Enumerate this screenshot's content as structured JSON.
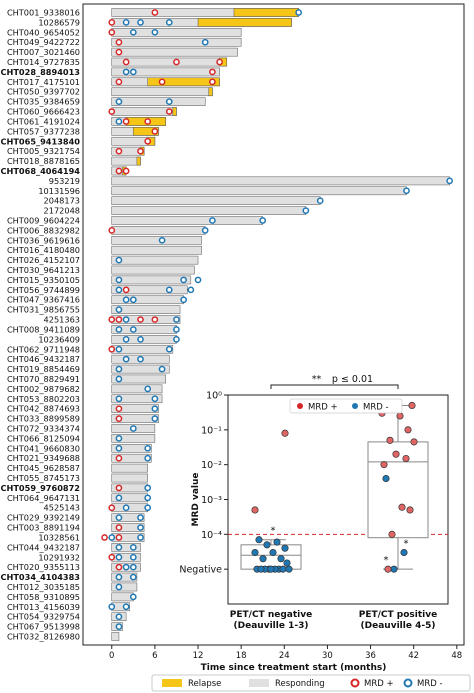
{
  "chart_data": [
    {
      "type": "bar",
      "orientation": "horizontal",
      "title": "",
      "xlabel": "Time since treatment start (months)",
      "ylabel": "",
      "xlim": [
        -4,
        49
      ],
      "xticks": [
        0,
        6,
        12,
        18,
        24,
        30,
        36,
        42,
        48
      ],
      "xtick_labels": [
        "0",
        "6",
        "12",
        "18",
        "24",
        "30",
        "36",
        "42",
        "48"
      ],
      "legend": {
        "placement": "bottom",
        "relapse": "Relapse",
        "responding": "Responding",
        "mrd_pos": "MRD +",
        "mrd_neg": "MRD -"
      },
      "colors": {
        "relapse": "#f5c518",
        "responding": "#e0e0e0",
        "mrd_pos": "#d62728",
        "mrd_neg": "#1f77b4"
      },
      "patients": [
        {
          "id": "CHT001_9338016",
          "bold": false,
          "total": 26,
          "relapse": [
            17,
            26
          ],
          "pos": [
            6
          ],
          "neg": [
            26
          ]
        },
        {
          "id": "10286579",
          "bold": false,
          "total": 25,
          "relapse": [
            12,
            25
          ],
          "pos": [
            0
          ],
          "neg": [
            2,
            4,
            8
          ]
        },
        {
          "id": "CHT040_9654052",
          "bold": false,
          "total": 18,
          "relapse": [],
          "pos": [
            0
          ],
          "neg": [
            3,
            6
          ]
        },
        {
          "id": "CHT049_9422722",
          "bold": false,
          "total": 18,
          "relapse": [],
          "pos": [
            1
          ],
          "neg": [
            13
          ]
        },
        {
          "id": "CHT007_3021460",
          "bold": false,
          "total": 17.5,
          "relapse": [],
          "pos": [
            1
          ],
          "neg": []
        },
        {
          "id": "CHT014_9727835",
          "bold": false,
          "total": 16,
          "relapse": [
            15,
            16
          ],
          "pos": [
            2,
            9,
            15
          ],
          "neg": []
        },
        {
          "id": "CHT028_8894013",
          "bold": true,
          "total": 15,
          "relapse": [],
          "pos": [
            14
          ],
          "neg": [
            2,
            3
          ]
        },
        {
          "id": "CHT017_4175101",
          "bold": false,
          "total": 15,
          "relapse": [
            5,
            15
          ],
          "pos": [
            1,
            7,
            14
          ],
          "neg": []
        },
        {
          "id": "CHT050_9397702",
          "bold": false,
          "total": 14,
          "relapse": [
            13.5,
            14
          ],
          "pos": [],
          "neg": []
        },
        {
          "id": "CHT035_9384659",
          "bold": false,
          "total": 13,
          "relapse": [],
          "pos": [],
          "neg": [
            1,
            8
          ]
        },
        {
          "id": "CHT060_9666423",
          "bold": false,
          "total": 9,
          "relapse": [
            8.5,
            9
          ],
          "pos": [
            0,
            8
          ],
          "neg": []
        },
        {
          "id": "CHT061_4191024",
          "bold": false,
          "total": 7.5,
          "relapse": [
            2,
            7.5
          ],
          "pos": [
            2,
            5
          ],
          "neg": [
            1
          ]
        },
        {
          "id": "CHT057_9377238",
          "bold": false,
          "total": 6.5,
          "relapse": [
            3,
            6.5
          ],
          "pos": [
            6
          ],
          "neg": []
        },
        {
          "id": "CHT065_9413840",
          "bold": true,
          "total": 6,
          "relapse": [
            5,
            6
          ],
          "pos": [
            5
          ],
          "neg": []
        },
        {
          "id": "CHT005_9321754",
          "bold": false,
          "total": 4.5,
          "relapse": [
            4,
            4.5
          ],
          "pos": [
            1,
            4
          ],
          "neg": []
        },
        {
          "id": "CHT018_8878165",
          "bold": false,
          "total": 4,
          "relapse": [
            3.5,
            4
          ],
          "pos": [],
          "neg": []
        },
        {
          "id": "CHT068_4064194",
          "bold": true,
          "total": 2,
          "relapse": [
            1.5,
            2
          ],
          "pos": [
            1,
            2
          ],
          "neg": []
        },
        {
          "id": "953219",
          "bold": false,
          "total": 47,
          "relapse": [],
          "pos": [],
          "neg": [
            47
          ]
        },
        {
          "id": "10131596",
          "bold": false,
          "total": 41,
          "relapse": [],
          "pos": [],
          "neg": [
            41
          ]
        },
        {
          "id": "2048173",
          "bold": false,
          "total": 29,
          "relapse": [],
          "pos": [],
          "neg": [
            29
          ]
        },
        {
          "id": "2172048",
          "bold": false,
          "total": 27,
          "relapse": [],
          "pos": [],
          "neg": [
            27
          ]
        },
        {
          "id": "CHT009_9604224",
          "bold": false,
          "total": 21,
          "relapse": [],
          "pos": [],
          "neg": [
            14,
            21
          ]
        },
        {
          "id": "CHT006_8832982",
          "bold": false,
          "total": 13,
          "relapse": [],
          "pos": [
            0
          ],
          "neg": [
            13
          ]
        },
        {
          "id": "CHT036_9619616",
          "bold": false,
          "total": 12.5,
          "relapse": [],
          "pos": [],
          "neg": [
            7
          ]
        },
        {
          "id": "CHT016_4180480",
          "bold": false,
          "total": 12.5,
          "relapse": [],
          "pos": [],
          "neg": []
        },
        {
          "id": "CHT026_4152107",
          "bold": false,
          "total": 12,
          "relapse": [],
          "pos": [],
          "neg": [
            1
          ]
        },
        {
          "id": "CHT030_9641213",
          "bold": false,
          "total": 11.5,
          "relapse": [],
          "pos": [],
          "neg": []
        },
        {
          "id": "CHT015_9350105",
          "bold": false,
          "total": 11,
          "relapse": [],
          "pos": [],
          "neg": [
            1,
            10,
            12
          ]
        },
        {
          "id": "CHT056_9744899",
          "bold": false,
          "total": 10.5,
          "relapse": [],
          "pos": [
            2
          ],
          "neg": [
            1,
            8,
            11
          ]
        },
        {
          "id": "CHT047_9367416",
          "bold": false,
          "total": 10,
          "relapse": [],
          "pos": [],
          "neg": [
            2,
            3,
            10
          ]
        },
        {
          "id": "CHT031_9856755",
          "bold": false,
          "total": 9.5,
          "relapse": [],
          "pos": [],
          "neg": [
            1
          ]
        },
        {
          "id": "4251363",
          "bold": false,
          "total": 9.5,
          "relapse": [],
          "pos": [
            0,
            1,
            4,
            6
          ],
          "neg": [
            2,
            9
          ]
        },
        {
          "id": "CHT008_9411089",
          "bold": false,
          "total": 9,
          "relapse": [],
          "pos": [],
          "neg": [
            1,
            3,
            9
          ]
        },
        {
          "id": "10236409",
          "bold": false,
          "total": 9,
          "relapse": [],
          "pos": [],
          "neg": [
            2,
            4,
            9
          ]
        },
        {
          "id": "CHT062_9711948",
          "bold": false,
          "total": 8.5,
          "relapse": [],
          "pos": [
            0
          ],
          "neg": [
            1,
            8
          ]
        },
        {
          "id": "CHT046_9432187",
          "bold": false,
          "total": 8,
          "relapse": [],
          "pos": [],
          "neg": [
            2,
            4
          ]
        },
        {
          "id": "CHT019_8854469",
          "bold": false,
          "total": 8,
          "relapse": [],
          "pos": [],
          "neg": [
            1,
            7
          ]
        },
        {
          "id": "CHT070_8829491",
          "bold": false,
          "total": 7.5,
          "relapse": [],
          "pos": [],
          "neg": [
            1
          ]
        },
        {
          "id": "CHT002_9879682",
          "bold": false,
          "total": 7,
          "relapse": [],
          "pos": [],
          "neg": [
            5
          ]
        },
        {
          "id": "CHT053_8802203",
          "bold": false,
          "total": 7,
          "relapse": [],
          "pos": [],
          "neg": [
            1,
            6
          ]
        },
        {
          "id": "CHT042_8874693",
          "bold": false,
          "total": 6.5,
          "relapse": [],
          "pos": [
            1
          ],
          "neg": [
            6
          ]
        },
        {
          "id": "CHT033_8899589",
          "bold": false,
          "total": 6.5,
          "relapse": [],
          "pos": [
            1
          ],
          "neg": [
            6
          ]
        },
        {
          "id": "CHT072_9334374",
          "bold": false,
          "total": 6,
          "relapse": [],
          "pos": [],
          "neg": [
            3
          ]
        },
        {
          "id": "CHT066_8125094",
          "bold": false,
          "total": 6,
          "relapse": [],
          "pos": [],
          "neg": [
            1
          ]
        },
        {
          "id": "CHT041_9660830",
          "bold": false,
          "total": 5.5,
          "relapse": [],
          "pos": [],
          "neg": [
            1,
            5
          ]
        },
        {
          "id": "CHT021_9349688",
          "bold": false,
          "total": 5.5,
          "relapse": [],
          "pos": [
            1
          ],
          "neg": [
            5
          ]
        },
        {
          "id": "CHT045_9628587",
          "bold": false,
          "total": 5,
          "relapse": [],
          "pos": [],
          "neg": []
        },
        {
          "id": "CHT055_8745173",
          "bold": false,
          "total": 5,
          "relapse": [],
          "pos": [],
          "neg": []
        },
        {
          "id": "CHT059_9760872",
          "bold": true,
          "total": 5,
          "relapse": [],
          "pos": [
            1
          ],
          "neg": [
            5
          ]
        },
        {
          "id": "CHT064_9647131",
          "bold": false,
          "total": 5,
          "relapse": [],
          "pos": [],
          "neg": [
            1,
            5
          ]
        },
        {
          "id": "4525143",
          "bold": false,
          "total": 5,
          "relapse": [],
          "pos": [
            0
          ],
          "neg": [
            2,
            5
          ]
        },
        {
          "id": "CHT029_9392149",
          "bold": false,
          "total": 4.5,
          "relapse": [],
          "pos": [],
          "neg": [
            1,
            4
          ]
        },
        {
          "id": "CHT003_8891194",
          "bold": false,
          "total": 4.5,
          "relapse": [],
          "pos": [
            1
          ],
          "neg": [
            4
          ]
        },
        {
          "id": "10328561",
          "bold": false,
          "total": 4.5,
          "relapse": [],
          "pos": [
            -1,
            1
          ],
          "neg": [
            0,
            4
          ]
        },
        {
          "id": "CHT044_9432187",
          "bold": false,
          "total": 4,
          "relapse": [],
          "pos": [],
          "neg": [
            1,
            3
          ]
        },
        {
          "id": "10291932",
          "bold": false,
          "total": 4,
          "relapse": [],
          "pos": [
            0
          ],
          "neg": [
            1,
            3
          ]
        },
        {
          "id": "CHT020_9355113",
          "bold": false,
          "total": 4,
          "relapse": [],
          "pos": [
            1
          ],
          "neg": [
            2,
            3
          ]
        },
        {
          "id": "CHT034_4104383",
          "bold": true,
          "total": 3.5,
          "relapse": [],
          "pos": [],
          "neg": [
            1,
            3
          ]
        },
        {
          "id": "CHT012_3035185",
          "bold": false,
          "total": 3.5,
          "relapse": [],
          "pos": [],
          "neg": [
            1
          ]
        },
        {
          "id": "CHT058_9310895",
          "bold": false,
          "total": 3,
          "relapse": [],
          "pos": [],
          "neg": [
            3
          ]
        },
        {
          "id": "CHT013_4156039",
          "bold": false,
          "total": 2.5,
          "relapse": [],
          "pos": [],
          "neg": [
            0,
            2
          ]
        },
        {
          "id": "CHT054_9329754",
          "bold": false,
          "total": 2,
          "relapse": [],
          "pos": [],
          "neg": [
            1
          ]
        },
        {
          "id": "CHT067_9513998",
          "bold": false,
          "total": 1.5,
          "relapse": [],
          "pos": [],
          "neg": [
            1
          ]
        },
        {
          "id": "CHT032_8126980",
          "bold": false,
          "total": 1,
          "relapse": [],
          "pos": [],
          "neg": []
        }
      ]
    },
    {
      "type": "box",
      "title": "",
      "ylabel": "MRD value",
      "yscale": "log",
      "ylim": [
        1e-06,
        1
      ],
      "yticks": [
        {
          "label": "10⁰",
          "value": 1
        },
        {
          "label": "10⁻¹",
          "value": 0.1
        },
        {
          "label": "10⁻²",
          "value": 0.01
        },
        {
          "label": "10⁻³",
          "value": 0.001
        },
        {
          "label": "10⁻⁴",
          "value": 0.0001
        },
        {
          "label": "Negative",
          "value": 1e-05
        }
      ],
      "threshold": 0.0001,
      "significance": {
        "stars": "**",
        "text": "p ≤ 0.01"
      },
      "legend": {
        "placement": "top",
        "mrd_pos": "MRD +",
        "mrd_neg": "MRD -"
      },
      "groups": [
        {
          "label": [
            "PET/CT negative",
            "(Deauville 1-3)"
          ],
          "box": {
            "q1": 1e-05,
            "median": 2.5e-05,
            "q3": 5e-05,
            "whisker_low": 1e-05,
            "whisker_high": 7e-05
          },
          "pos": [
            0.08,
            0.0005
          ],
          "neg": [
            7e-05,
            6e-05,
            5e-05,
            4e-05,
            3e-05,
            3e-05,
            2e-05,
            2e-05,
            1.5e-05,
            1e-05,
            1e-05,
            1e-05,
            1e-05,
            1e-05,
            1e-05,
            1e-05,
            1e-05,
            1e-05
          ],
          "flagged": [
            7e-05
          ]
        },
        {
          "label": [
            "PET/CT positive",
            "(Deauville 4-5)"
          ],
          "box": {
            "q1": 8e-05,
            "median": 0.012,
            "q3": 0.045,
            "whisker_low": 1e-05,
            "whisker_high": 0.5
          },
          "pos": [
            0.5,
            0.3,
            0.25,
            0.1,
            0.05,
            0.045,
            0.02,
            0.015,
            0.01,
            0.0006,
            0.0005,
            0.0001,
            1e-05
          ],
          "neg": [
            0.004,
            3e-05,
            1e-05
          ],
          "flagged": [
            1e-05,
            3e-05
          ]
        }
      ]
    }
  ]
}
